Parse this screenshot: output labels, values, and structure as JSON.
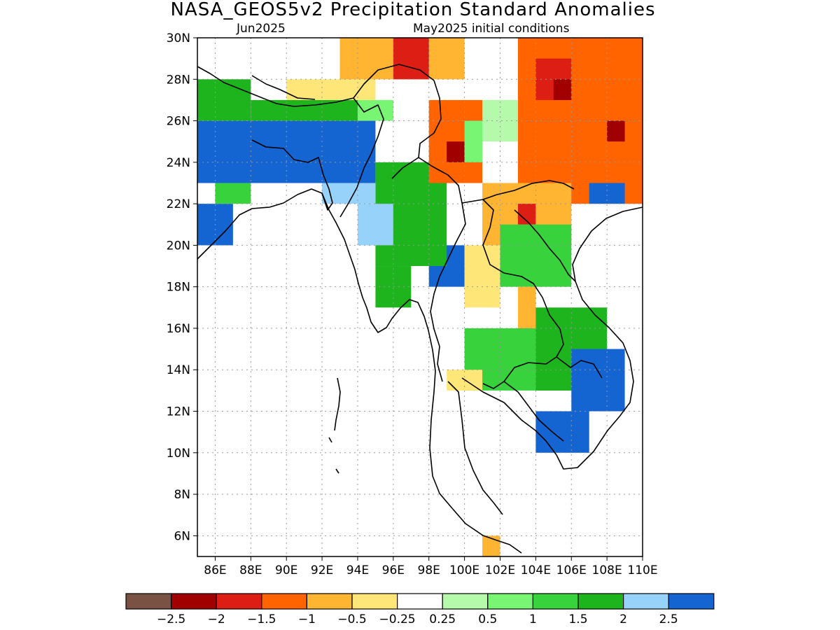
{
  "title": "NASA_GEOS5v2 Precipitation Standard Anomalies",
  "subtitle_left": "Jun2025",
  "subtitle_right": "May2025 initial conditions",
  "lat_labels": [
    "30N",
    "28N",
    "26N",
    "24N",
    "22N",
    "20N",
    "18N",
    "16N",
    "14N",
    "12N",
    "10N",
    "8N",
    "6N"
  ],
  "lon_labels": [
    "86E",
    "88E",
    "90E",
    "92E",
    "94E",
    "96E",
    "98E",
    "100E",
    "102E",
    "104E",
    "106E",
    "108E",
    "110E"
  ],
  "colorbar": {
    "colors": [
      "#7a5244",
      "#a00000",
      "#dc1e14",
      "#ff6400",
      "#ffb432",
      "#ffe678",
      "#ffffff",
      "#b4faaa",
      "#78f573",
      "#37d23c",
      "#1eb41e",
      "#96d2fa",
      "#1464d2"
    ],
    "labels": [
      "−2.5",
      "−2",
      "−1.5",
      "−1",
      "−0.5",
      "−0.25",
      "0.25",
      "0.5",
      "1",
      "1.5",
      "2",
      "2.5"
    ]
  },
  "chart_data": {
    "type": "heatmap",
    "title": "NASA_GEOS5v2 Precipitation Standard Anomalies",
    "lon_range": [
      85,
      110
    ],
    "lat_range": [
      5,
      30
    ],
    "grid_spacing_deg": 2,
    "cell_deg": 1,
    "regions": [
      {
        "lon": [
          85,
          95
        ],
        "lat": [
          23,
          26
        ],
        "value": 2.5
      },
      {
        "lon": [
          85,
          87
        ],
        "lat": [
          20,
          22
        ],
        "value": 2.5
      },
      {
        "lon": [
          98,
          100
        ],
        "lat": [
          18,
          20
        ],
        "value": 2.5
      },
      {
        "lon": [
          85,
          88
        ],
        "lat": [
          26,
          28
        ],
        "value": 1.5
      },
      {
        "lon": [
          88,
          95
        ],
        "lat": [
          26,
          27
        ],
        "value": 1.5
      },
      {
        "lon": [
          95,
          99
        ],
        "lat": [
          19,
          24
        ],
        "value": 1.5
      },
      {
        "lon": [
          95,
          97
        ],
        "lat": [
          17,
          19
        ],
        "value": 1.5
      },
      {
        "lon": [
          92,
          95
        ],
        "lat": [
          22,
          23
        ],
        "value": 2.0
      },
      {
        "lon": [
          94,
          96
        ],
        "lat": [
          20,
          22
        ],
        "value": 2.0
      },
      {
        "lon": [
          86,
          88
        ],
        "lat": [
          22,
          23
        ],
        "value": 1.0
      },
      {
        "lon": [
          94,
          96
        ],
        "lat": [
          26,
          27
        ],
        "value": 0.5
      },
      {
        "lon": [
          90,
          95
        ],
        "lat": [
          27,
          28
        ],
        "value": -0.5
      },
      {
        "lon": [
          93,
          100
        ],
        "lat": [
          28,
          30
        ],
        "value": -1.0
      },
      {
        "lon": [
          96,
          98
        ],
        "lat": [
          28,
          30
        ],
        "value": -2.0
      },
      {
        "lon": [
          98,
          101
        ],
        "lat": [
          23,
          27
        ],
        "value": -1.5
      },
      {
        "lon": [
          99,
          100
        ],
        "lat": [
          24,
          25
        ],
        "value": -2.5
      },
      {
        "lon": [
          100,
          101
        ],
        "lat": [
          24,
          26
        ],
        "value": 0.5
      },
      {
        "lon": [
          101,
          103
        ],
        "lat": [
          25,
          27
        ],
        "value": 0.25
      },
      {
        "lon": [
          103,
          110
        ],
        "lat": [
          22,
          30
        ],
        "value": -1.5
      },
      {
        "lon": [
          104,
          106
        ],
        "lat": [
          27,
          29
        ],
        "value": -2.0
      },
      {
        "lon": [
          105,
          106
        ],
        "lat": [
          27,
          28
        ],
        "value": -2.5
      },
      {
        "lon": [
          108,
          109
        ],
        "lat": [
          25,
          26
        ],
        "value": -2.5
      },
      {
        "lon": [
          107,
          109
        ],
        "lat": [
          22,
          23
        ],
        "value": 2.5
      },
      {
        "lon": [
          101,
          106
        ],
        "lat": [
          20,
          23
        ],
        "value": -1.0
      },
      {
        "lon": [
          103,
          104
        ],
        "lat": [
          21,
          22
        ],
        "value": -2.0
      },
      {
        "lon": [
          100,
          102
        ],
        "lat": [
          17,
          20
        ],
        "value": -0.5
      },
      {
        "lon": [
          102,
          106
        ],
        "lat": [
          18,
          21
        ],
        "value": 1.0
      },
      {
        "lon": [
          103,
          104
        ],
        "lat": [
          16,
          18
        ],
        "value": -1.0
      },
      {
        "lon": [
          100,
          106
        ],
        "lat": [
          13,
          16
        ],
        "value": 1.0
      },
      {
        "lon": [
          104,
          108
        ],
        "lat": [
          13,
          17
        ],
        "value": 1.5
      },
      {
        "lon": [
          106,
          109
        ],
        "lat": [
          12,
          15
        ],
        "value": 2.5
      },
      {
        "lon": [
          104,
          107
        ],
        "lat": [
          10,
          12
        ],
        "value": 2.5
      },
      {
        "lon": [
          99,
          101
        ],
        "lat": [
          13,
          14
        ],
        "value": -0.5
      },
      {
        "lon": [
          101,
          102
        ],
        "lat": [
          5,
          6
        ],
        "value": -1.0
      }
    ]
  }
}
